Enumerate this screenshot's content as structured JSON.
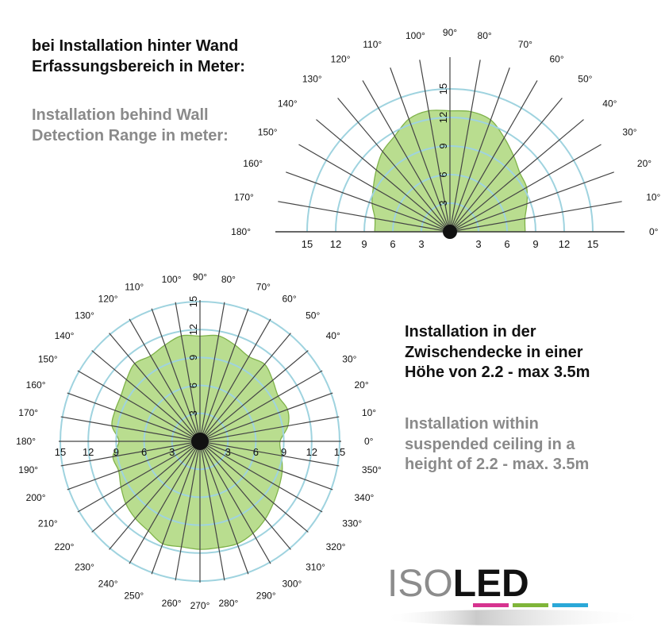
{
  "wall_text": {
    "de_line1": "bei Installation hinter Wand",
    "de_line2": "Erfassungsbereich in Meter:",
    "en_line1": "Installation behind Wall",
    "en_line2": "Detection Range in meter:"
  },
  "ceiling_text": {
    "de_line1": "Installation in der",
    "de_line2": "Zwischendecke in einer",
    "de_line3": "Höhe von 2.2 - max 3.5m",
    "en_line1": "Installation within",
    "en_line2": "suspended ceiling in a",
    "en_line3": "height of 2.2 - max. 3.5m"
  },
  "logo": {
    "text": "ISOLED",
    "part1": "ISO",
    "part2": "LED",
    "bar_colors": [
      "#d6338f",
      "#7fb539",
      "#2aa8d8"
    ]
  },
  "colors": {
    "detection_fill": "#b9dd8f",
    "detection_stroke": "#7fb24a",
    "range_circle": "#9fd3df",
    "ray": "#444444"
  },
  "chart_data": [
    {
      "type": "polar-area",
      "name": "wall",
      "angle_labels": [
        "0°",
        "10°",
        "20°",
        "30°",
        "40°",
        "50°",
        "60°",
        "70°",
        "80°",
        "90°",
        "100°",
        "110°",
        "120°",
        "130°",
        "140°",
        "150°",
        "160°",
        "170°",
        "180°"
      ],
      "ring_labels": [
        "3",
        "6",
        "9",
        "12",
        "15"
      ],
      "axis_labels_left": [
        "15",
        "12",
        "9",
        "6",
        "3"
      ],
      "axis_labels_right": [
        "3",
        "6",
        "9",
        "12",
        "15"
      ],
      "range_rings_m": [
        3,
        6,
        9,
        12,
        15
      ],
      "detection_radius_m": [
        7.9,
        8.0,
        8.6,
        9.3,
        9.6,
        10.4,
        11.4,
        12.5,
        12.8,
        12.7,
        12.9,
        12.6,
        11.6,
        11.0,
        10.1,
        9.3,
        8.7,
        8.0,
        7.9
      ]
    },
    {
      "type": "polar-area",
      "name": "ceiling",
      "angle_labels": [
        "0°",
        "10°",
        "20°",
        "30°",
        "40°",
        "50°",
        "60°",
        "70°",
        "80°",
        "90°",
        "100°",
        "110°",
        "120°",
        "130°",
        "140°",
        "150°",
        "160°",
        "170°",
        "180°",
        "190°",
        "200°",
        "210°",
        "220°",
        "230°",
        "240°",
        "250°",
        "260°",
        "270°",
        "280°",
        "290°",
        "300°",
        "310°",
        "320°",
        "330°",
        "340°",
        "350°"
      ],
      "ring_labels": [
        "3",
        "6",
        "9",
        "12",
        "15"
      ],
      "axis_labels_left": [
        "15",
        "12",
        "9",
        "6",
        "3"
      ],
      "axis_labels_right": [
        "3",
        "6",
        "9",
        "12",
        "15"
      ],
      "range_rings_m": [
        3,
        6,
        9,
        12,
        15
      ],
      "detection_radius_m": [
        8.6,
        9.6,
        10.0,
        9.7,
        10.2,
        10.8,
        10.5,
        11.0,
        11.5,
        11.3,
        11.5,
        11.0,
        10.6,
        10.9,
        10.3,
        9.8,
        9.7,
        9.6,
        8.7,
        9.5,
        9.3,
        9.8,
        10.4,
        10.8,
        11.1,
        11.7,
        11.5,
        11.6,
        11.6,
        11.7,
        11.4,
        10.9,
        10.3,
        9.8,
        9.4,
        8.9
      ]
    }
  ]
}
